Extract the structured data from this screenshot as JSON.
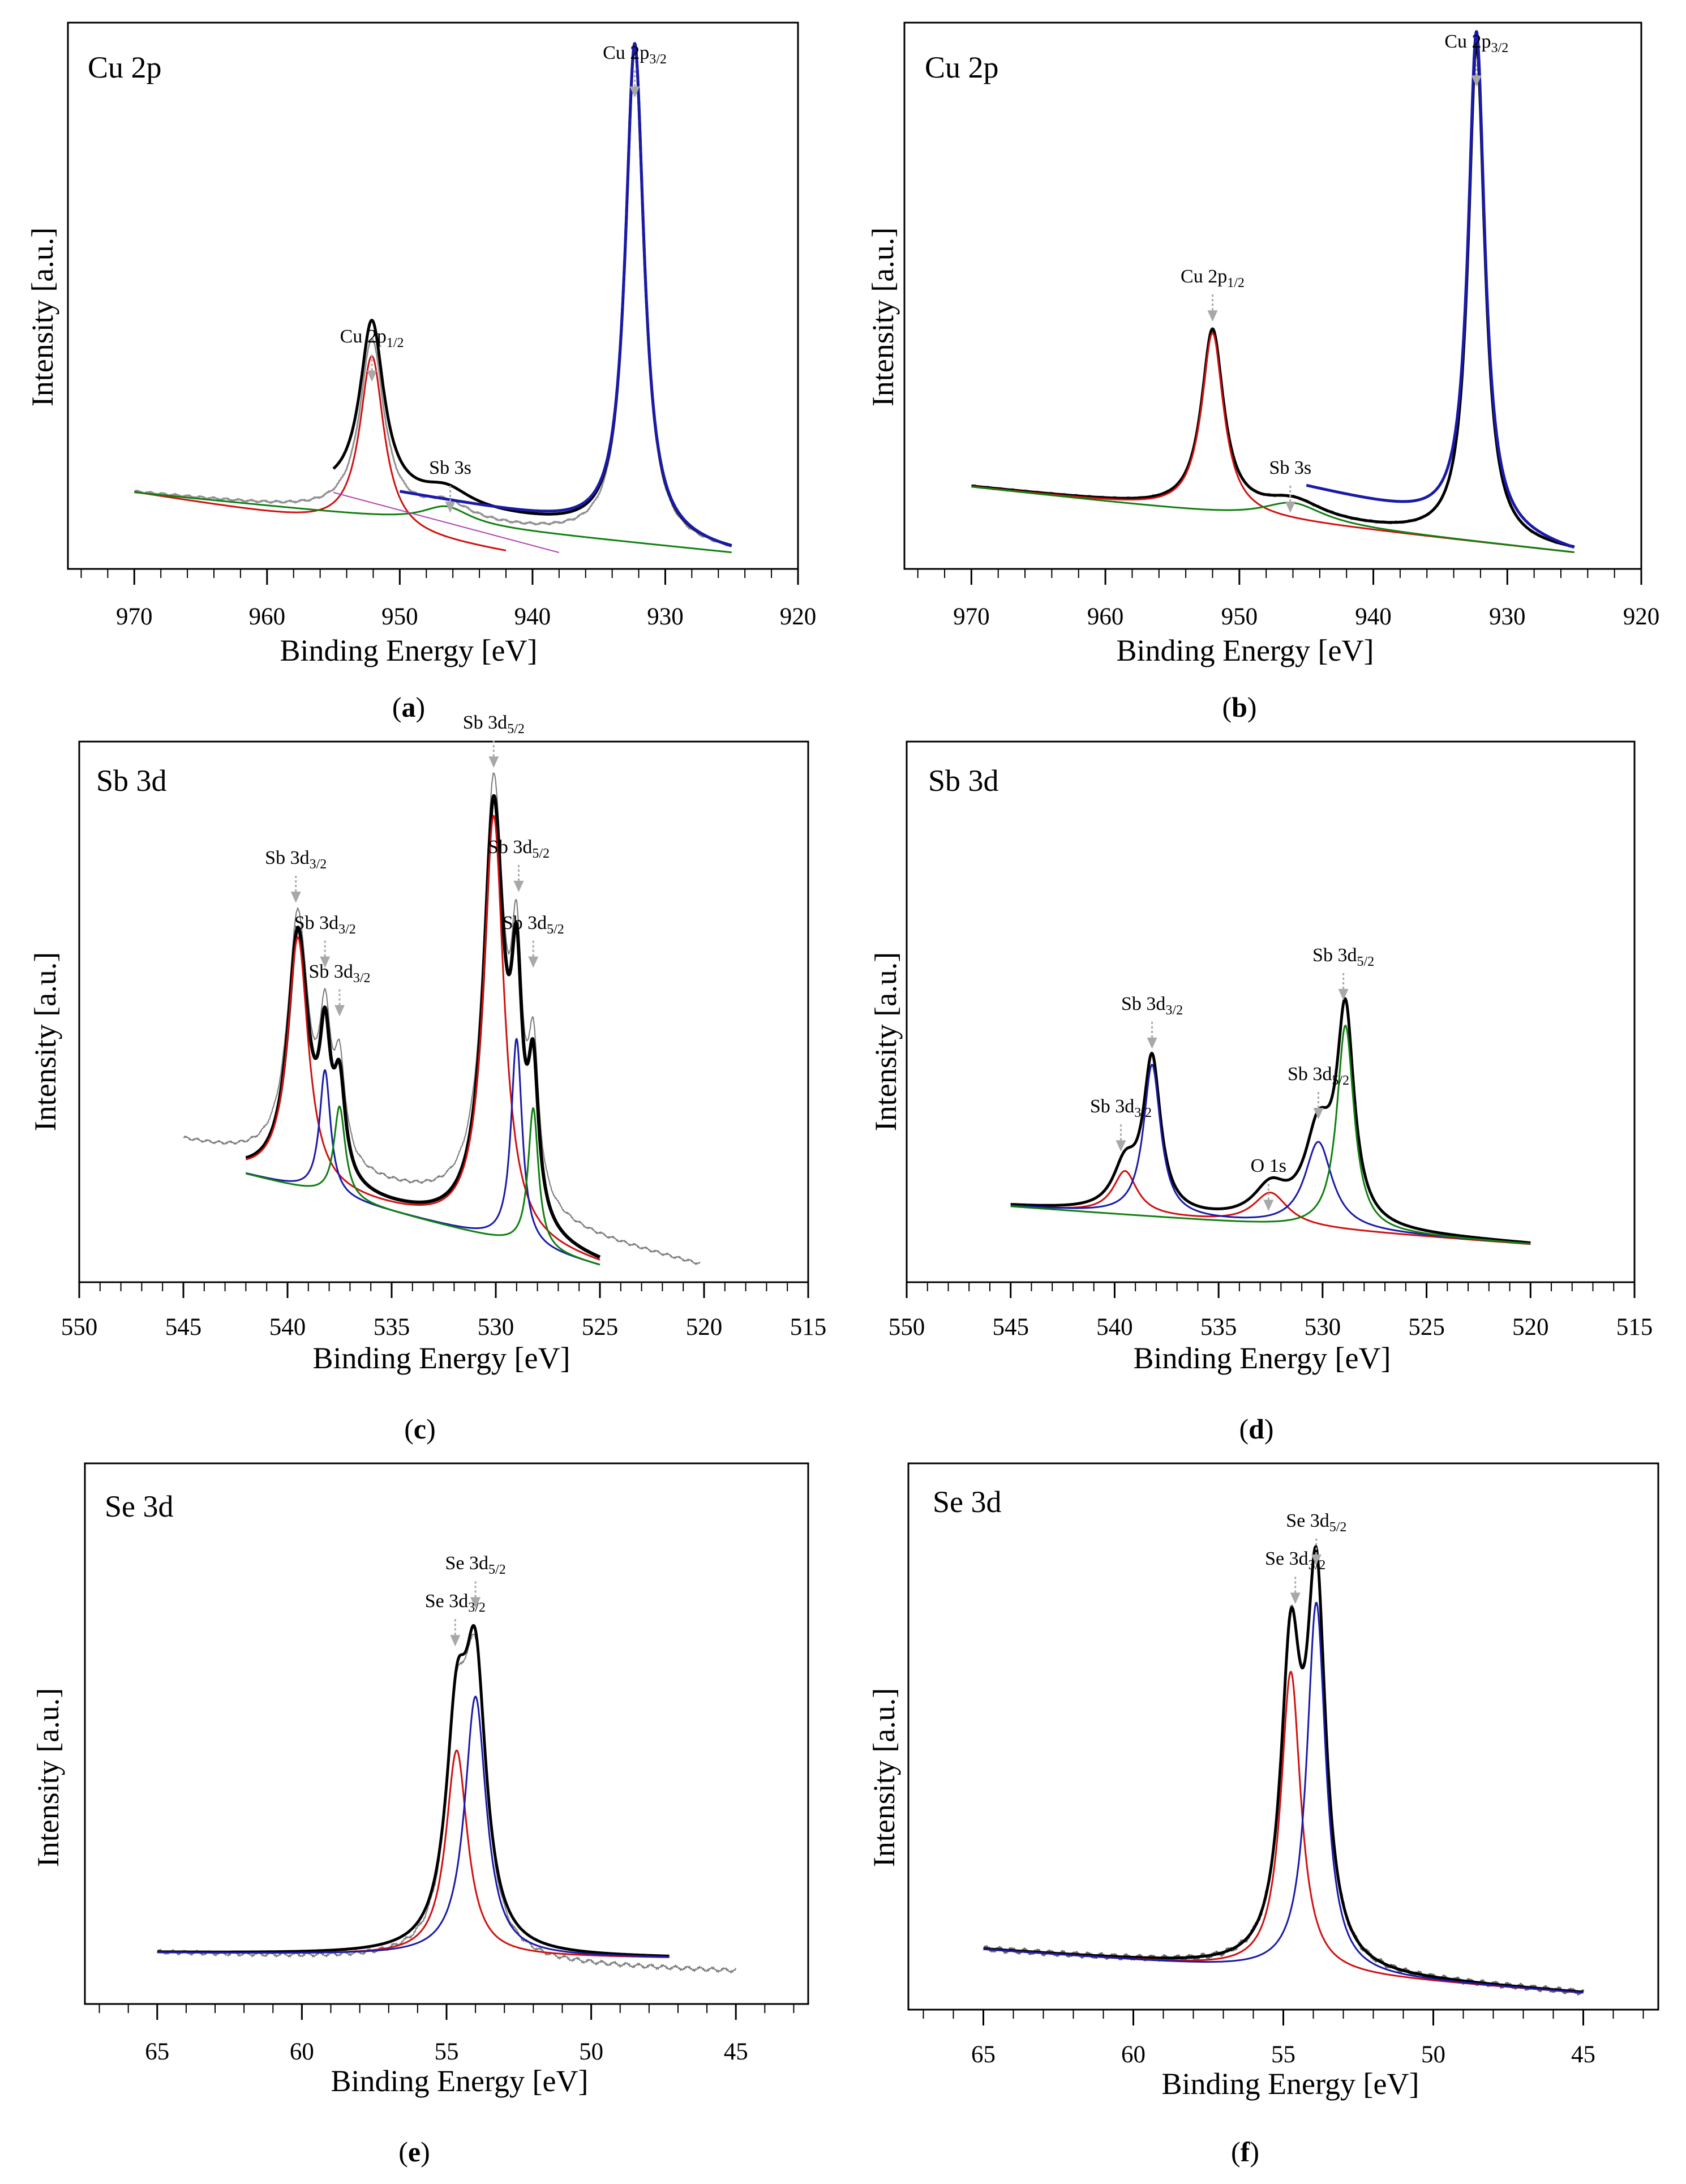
{
  "chart_data": [
    {
      "id": "a",
      "type": "line",
      "caption": "a",
      "title": "Cu 2p",
      "xlabel": "Binding Energy [eV]",
      "ylabel": "Intensity [a.u.]",
      "xlim": [
        975,
        920
      ],
      "ylim": [
        0,
        100
      ],
      "xticks": [
        "970",
        "960",
        "950",
        "940",
        "930",
        "920"
      ],
      "annotations": [
        {
          "label": "Cu 2p",
          "sub": "3/2",
          "x": 932.3,
          "y": 96
        },
        {
          "label": "Cu 2p",
          "sub": "1/2",
          "x": 952.1,
          "y": 44
        },
        {
          "label": "Sb 3s",
          "x": 946.2,
          "y": 20
        }
      ],
      "series": [
        {
          "name": "measured",
          "color": "#909090",
          "width": 3,
          "range": [
            970,
            925
          ],
          "noise": 0.25,
          "baseline": [
            14,
            3
          ],
          "peaks": [
            {
              "x": 932.3,
              "h": 90,
              "w": 0.85
            },
            {
              "x": 952.1,
              "h": 32,
              "w": 1.1
            },
            {
              "x": 946.5,
              "h": 3.2,
              "w": 2.2
            }
          ]
        },
        {
          "name": "fit envelope",
          "color": "#000000",
          "width": 5,
          "range": [
            955,
            925
          ],
          "baseline": [
            14,
            3
          ],
          "peaks": [
            {
              "x": 932.3,
              "h": 90,
              "w": 0.85
            },
            {
              "x": 952.1,
              "h": 32,
              "w": 1.1
            },
            {
              "x": 946.5,
              "h": 3.2,
              "w": 2.2
            }
          ]
        },
        {
          "name": "Cu 2p1/2 component",
          "color": "#d01010",
          "width": 3,
          "range": [
            970,
            942
          ],
          "baseline": [
            14,
            3
          ],
          "peaks": [
            {
              "x": 952.1,
              "h": 32,
              "w": 1.1
            }
          ]
        },
        {
          "name": "Sb 3s component",
          "color": "#108010",
          "width": 3,
          "range": [
            970,
            925
          ],
          "baseline": [
            14,
            3
          ],
          "peaks": [
            {
              "x": 946.5,
              "h": 3.2,
              "w": 2.2
            }
          ]
        },
        {
          "name": "Cu 2p3/2 component",
          "color": "#1a1aaa",
          "width": 5,
          "range": [
            950,
            925
          ],
          "baseline": [
            14,
            3
          ],
          "peaks": [
            {
              "x": 932.3,
              "h": 90,
              "w": 0.85
            }
          ]
        },
        {
          "name": "background",
          "color": "#b040b0",
          "width": 2,
          "range": [
            955,
            938
          ],
          "baseline": [
            14,
            3
          ],
          "peaks": []
        }
      ]
    },
    {
      "id": "b",
      "type": "line",
      "caption": "b",
      "title": "Cu 2p",
      "xlabel": "Binding Energy [eV]",
      "ylabel": "Intensity [a.u.]",
      "xlim": [
        975,
        920
      ],
      "ylim": [
        0,
        100
      ],
      "xticks": [
        "970",
        "960",
        "950",
        "940",
        "930",
        "920"
      ],
      "annotations": [
        {
          "label": "Cu 2p",
          "sub": "3/2",
          "x": 932.3,
          "y": 98
        },
        {
          "label": "Cu 2p",
          "sub": "1/2",
          "x": 952.0,
          "y": 55
        },
        {
          "label": "Sb 3s",
          "x": 946.2,
          "y": 20
        }
      ],
      "series": [
        {
          "name": "measured",
          "color": "#909090",
          "width": 3,
          "range": [
            970,
            925
          ],
          "noise": 0.25,
          "baseline": [
            15,
            3
          ],
          "peaks": [
            {
              "x": 932.3,
              "h": 91,
              "w": 0.75
            },
            {
              "x": 952.0,
              "h": 33,
              "w": 1.0
            },
            {
              "x": 946.0,
              "h": 3.5,
              "w": 2.8
            }
          ]
        },
        {
          "name": "fit envelope",
          "color": "#000000",
          "width": 5,
          "range": [
            970,
            925
          ],
          "baseline": [
            15,
            3
          ],
          "peaks": [
            {
              "x": 932.3,
              "h": 91,
              "w": 0.75
            },
            {
              "x": 952.0,
              "h": 33,
              "w": 1.0
            },
            {
              "x": 946.0,
              "h": 3.5,
              "w": 2.8
            }
          ]
        },
        {
          "name": "Cu 2p1/2 component",
          "color": "#d01010",
          "width": 3,
          "range": [
            970,
            925
          ],
          "baseline": [
            15,
            3
          ],
          "peaks": [
            {
              "x": 952.0,
              "h": 33,
              "w": 1.0
            }
          ]
        },
        {
          "name": "Sb 3s component",
          "color": "#108010",
          "width": 3,
          "range": [
            970,
            925
          ],
          "baseline": [
            15,
            3
          ],
          "peaks": [
            {
              "x": 946.0,
              "h": 3.5,
              "w": 2.8
            }
          ]
        },
        {
          "name": "Cu 2p3/2 component",
          "color": "#1a1aaa",
          "width": 5,
          "range": [
            945,
            925
          ],
          "baseline": [
            15,
            3
          ],
          "peaks": [
            {
              "x": 932.3,
              "h": 91,
              "w": 0.75
            }
          ]
        }
      ]
    },
    {
      "id": "c",
      "type": "line",
      "caption": "c",
      "title": "Sb 3d",
      "xlabel": "Binding Energy [eV]",
      "ylabel": "Intensity [a.u.]",
      "xlim": [
        550,
        515
      ],
      "ylim": [
        0,
        100
      ],
      "xticks": [
        "550",
        "545",
        "540",
        "535",
        "530",
        "525",
        "520",
        "515"
      ],
      "annotations": [
        {
          "label": "Sb 3d",
          "sub": "5/2",
          "x": 530.1,
          "y": 105
        },
        {
          "label": "Sb 3d",
          "sub": "3/2",
          "x": 539.6,
          "y": 80
        },
        {
          "label": "Sb 3d",
          "sub": "5/2",
          "x": 528.9,
          "y": 82
        },
        {
          "label": "Sb 3d",
          "sub": "3/2",
          "x": 538.2,
          "y": 68
        },
        {
          "label": "Sb 3d",
          "sub": "5/2",
          "x": 528.2,
          "y": 68
        },
        {
          "label": "Sb 3d",
          "sub": "3/2",
          "x": 537.5,
          "y": 59
        }
      ],
      "series": [
        {
          "name": "measured",
          "color": "#7a7a7a",
          "width": 2,
          "range": [
            545,
            520.2
          ],
          "noise": 0.35,
          "baseline": [
            26,
            3
          ],
          "peaks": [
            {
              "x": 530.1,
              "h": 78,
              "w": 0.6
            },
            {
              "x": 539.5,
              "h": 46,
              "w": 0.6
            },
            {
              "x": 529.0,
              "h": 38,
              "w": 0.32
            },
            {
              "x": 528.2,
              "h": 26,
              "w": 0.3
            },
            {
              "x": 538.2,
              "h": 23,
              "w": 0.32
            },
            {
              "x": 537.5,
              "h": 17,
              "w": 0.33
            }
          ]
        },
        {
          "name": "fit envelope",
          "color": "#000000",
          "width": 6,
          "range": [
            542,
            525
          ],
          "baseline": [
            20,
            3
          ],
          "peaks": [
            {
              "x": 530.1,
              "h": 78,
              "w": 0.6
            },
            {
              "x": 539.5,
              "h": 46,
              "w": 0.6
            },
            {
              "x": 529.0,
              "h": 38,
              "w": 0.32
            },
            {
              "x": 528.2,
              "h": 26,
              "w": 0.3
            },
            {
              "x": 538.2,
              "h": 23,
              "w": 0.32
            },
            {
              "x": 537.5,
              "h": 17,
              "w": 0.33
            }
          ]
        },
        {
          "name": "component 1 (red)",
          "color": "#d01010",
          "width": 3,
          "range": [
            542,
            525
          ],
          "baseline": [
            20,
            3
          ],
          "peaks": [
            {
              "x": 530.1,
              "h": 78,
              "w": 0.6
            },
            {
              "x": 539.5,
              "h": 46,
              "w": 0.6
            }
          ]
        },
        {
          "name": "component 2 (blue)",
          "color": "#1a1aaa",
          "width": 3,
          "range": [
            542,
            525
          ],
          "baseline": [
            20,
            3
          ],
          "peaks": [
            {
              "x": 529.0,
              "h": 38,
              "w": 0.32
            },
            {
              "x": 538.2,
              "h": 23,
              "w": 0.32
            }
          ]
        },
        {
          "name": "component 3 (green)",
          "color": "#108010",
          "width": 3,
          "range": [
            542,
            525
          ],
          "baseline": [
            20,
            3
          ],
          "peaks": [
            {
              "x": 528.2,
              "h": 26,
              "w": 0.3
            },
            {
              "x": 537.5,
              "h": 17,
              "w": 0.33
            }
          ]
        }
      ]
    },
    {
      "id": "d",
      "type": "line",
      "caption": "d",
      "title": "Sb 3d",
      "xlabel": "Binding Energy [eV]",
      "ylabel": "Intensity [a.u.]",
      "xlim": [
        550,
        515
      ],
      "ylim": [
        0,
        100
      ],
      "xticks": [
        "550",
        "545",
        "540",
        "535",
        "530",
        "525",
        "520",
        "515"
      ],
      "annotations": [
        {
          "label": "Sb 3d",
          "sub": "5/2",
          "x": 529.0,
          "y": 62
        },
        {
          "label": "Sb 3d",
          "sub": "3/2",
          "x": 538.2,
          "y": 53
        },
        {
          "label": "Sb 3d",
          "sub": "5/2",
          "x": 530.2,
          "y": 40
        },
        {
          "label": "Sb 3d",
          "sub": "3/2",
          "x": 539.7,
          "y": 34
        },
        {
          "label": "O 1s",
          "x": 532.6,
          "y": 23
        }
      ],
      "series": [
        {
          "name": "measured",
          "color": "#8a8a8a",
          "width": 2,
          "range": [
            545,
            520
          ],
          "noise": 0.2,
          "baseline": [
            14,
            7
          ],
          "peaks": [
            {
              "x": 528.9,
              "h": 38,
              "w": 0.5
            },
            {
              "x": 538.2,
              "h": 28,
              "w": 0.5
            },
            {
              "x": 530.2,
              "h": 16,
              "w": 0.8
            },
            {
              "x": 539.5,
              "h": 8,
              "w": 0.7
            },
            {
              "x": 532.5,
              "h": 6,
              "w": 1.0
            }
          ]
        },
        {
          "name": "fit envelope",
          "color": "#000000",
          "width": 5,
          "range": [
            545,
            520
          ],
          "baseline": [
            14,
            7
          ],
          "peaks": [
            {
              "x": 528.9,
              "h": 38,
              "w": 0.5
            },
            {
              "x": 538.2,
              "h": 28,
              "w": 0.5
            },
            {
              "x": 530.2,
              "h": 16,
              "w": 0.8
            },
            {
              "x": 539.5,
              "h": 8,
              "w": 0.7
            },
            {
              "x": 532.5,
              "h": 6,
              "w": 1.0
            }
          ]
        },
        {
          "name": "Sb 3d3/2 + O 1s (red)",
          "color": "#d01010",
          "width": 3,
          "range": [
            545,
            520
          ],
          "baseline": [
            14,
            7
          ],
          "peaks": [
            {
              "x": 539.5,
              "h": 8,
              "w": 0.7
            },
            {
              "x": 532.5,
              "h": 6,
              "w": 1.0
            }
          ]
        },
        {
          "name": "component (blue)",
          "color": "#1a1aaa",
          "width": 3,
          "range": [
            545,
            520
          ],
          "baseline": [
            14,
            7
          ],
          "peaks": [
            {
              "x": 538.2,
              "h": 28,
              "w": 0.5
            },
            {
              "x": 530.2,
              "h": 16,
              "w": 0.8
            }
          ]
        },
        {
          "name": "component (green)",
          "color": "#108010",
          "width": 3,
          "range": [
            545,
            520
          ],
          "baseline": [
            14,
            7
          ],
          "peaks": [
            {
              "x": 528.9,
              "h": 38,
              "w": 0.5
            }
          ]
        }
      ]
    },
    {
      "id": "e",
      "type": "line",
      "caption": "e",
      "title": "Se 3d",
      "xlabel": "Binding Energy [eV]",
      "ylabel": "Intensity [a.u.]",
      "xlim": [
        67.5,
        42.5
      ],
      "ylim": [
        0,
        100
      ],
      "xticks": [
        "65",
        "60",
        "55",
        "50",
        "45"
      ],
      "annotations": [
        {
          "label": "Se 3d",
          "sub": "5/2",
          "x": 54.0,
          "y": 83
        },
        {
          "label": "Se 3d",
          "sub": "3/2",
          "x": 54.7,
          "y": 76
        }
      ],
      "series": [
        {
          "name": "measured",
          "color": "#7a7a7a",
          "width": 2,
          "range": [
            65,
            45
          ],
          "noise": 0.5,
          "baseline": [
            9.5,
            6
          ],
          "peaks": [
            {
              "x": 54.0,
              "h": 48,
              "w": 0.45
            },
            {
              "x": 54.65,
              "h": 38,
              "w": 0.45
            }
          ]
        },
        {
          "name": "fit envelope",
          "color": "#000000",
          "width": 5,
          "range": [
            65,
            47.3
          ],
          "baseline": [
            9.5,
            8.5
          ],
          "peaks": [
            {
              "x": 54.0,
              "h": 48,
              "w": 0.45
            },
            {
              "x": 54.65,
              "h": 38,
              "w": 0.45
            }
          ]
        },
        {
          "name": "Se 3d3/2 component",
          "color": "#d01010",
          "width": 3,
          "range": [
            65,
            47.3
          ],
          "baseline": [
            9.5,
            8.5
          ],
          "peaks": [
            {
              "x": 54.65,
              "h": 38,
              "w": 0.45
            }
          ]
        },
        {
          "name": "Se 3d5/2 component",
          "color": "#1a1aaa",
          "width": 3,
          "range": [
            65,
            47.3
          ],
          "baseline": [
            9.5,
            8.5
          ],
          "peaks": [
            {
              "x": 54.0,
              "h": 48,
              "w": 0.45
            }
          ]
        }
      ]
    },
    {
      "id": "f",
      "type": "line",
      "caption": "f",
      "title": "Se 3d",
      "xlabel": "Binding Energy [eV]",
      "ylabel": "Intensity [a.u.]",
      "xlim": [
        67.5,
        42.5
      ],
      "ylim": [
        0,
        100
      ],
      "xticks": [
        "65",
        "60",
        "55",
        "50",
        "45"
      ],
      "annotations": [
        {
          "label": "Se 3d",
          "sub": "5/2",
          "x": 53.9,
          "y": 91
        },
        {
          "label": "Se 3d",
          "sub": "3/2",
          "x": 54.6,
          "y": 84
        }
      ],
      "series": [
        {
          "name": "measured",
          "color": "#6a6a6a",
          "width": 4,
          "range": [
            65,
            45
          ],
          "noise": 0.5,
          "baseline": [
            11,
            3
          ],
          "peaks": [
            {
              "x": 53.9,
              "h": 68,
              "w": 0.38
            },
            {
              "x": 54.75,
              "h": 55,
              "w": 0.4
            }
          ]
        },
        {
          "name": "fit envelope",
          "color": "#000000",
          "width": 5,
          "range": [
            65,
            45
          ],
          "baseline": [
            11,
            3
          ],
          "peaks": [
            {
              "x": 53.9,
              "h": 68,
              "w": 0.38
            },
            {
              "x": 54.75,
              "h": 55,
              "w": 0.4
            }
          ]
        },
        {
          "name": "Se 3d3/2 component",
          "color": "#d01010",
          "width": 3,
          "range": [
            65,
            45
          ],
          "baseline": [
            11,
            3
          ],
          "peaks": [
            {
              "x": 54.75,
              "h": 55,
              "w": 0.4
            }
          ]
        },
        {
          "name": "Se 3d5/2 component",
          "color": "#1a1aaa",
          "width": 3,
          "range": [
            65,
            45
          ],
          "baseline": [
            11,
            3
          ],
          "peaks": [
            {
              "x": 53.9,
              "h": 68,
              "w": 0.38
            }
          ]
        }
      ]
    }
  ]
}
